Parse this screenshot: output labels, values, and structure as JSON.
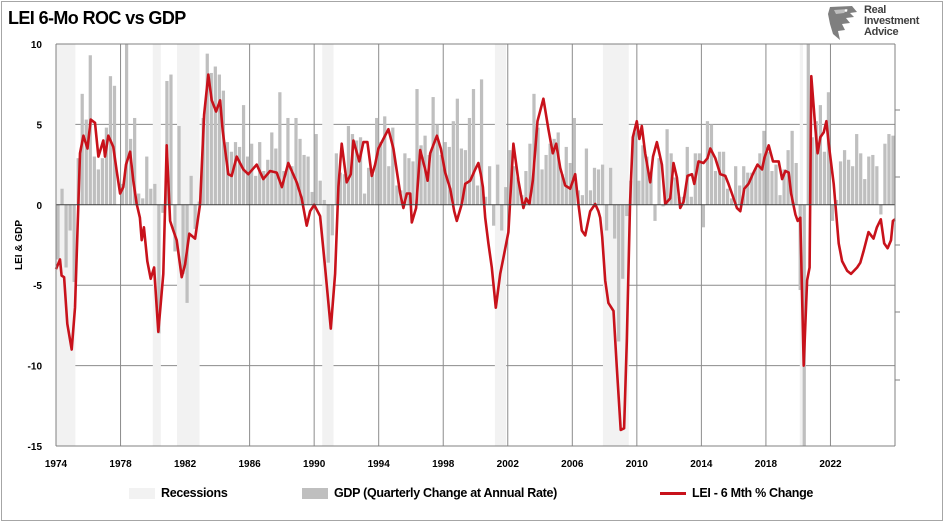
{
  "title": "LEI 6-Mo ROC vs GDP",
  "logo": {
    "line1": "Real",
    "line2": "Investment",
    "line3": "Advice"
  },
  "colors": {
    "recession": "#f2f2f2",
    "gdp": "#bfbfbf",
    "lei": "#c8121b",
    "grid": "#8c8c8c"
  },
  "chart_data": {
    "type": "bar+line",
    "title": "LEI 6-Mo ROC vs GDP",
    "ylabel": "LEI & GDP",
    "xlabel": "",
    "xlim": [
      1974,
      2026
    ],
    "ylim": [
      -15,
      10
    ],
    "yticks": [
      10,
      5,
      0,
      -5,
      -10,
      -15
    ],
    "xticks": [
      1974,
      1978,
      1982,
      1986,
      1990,
      1994,
      1998,
      2002,
      2006,
      2010,
      2014,
      2018,
      2022
    ],
    "grid": true,
    "legend_position": "bottom",
    "legend": [
      "Recessions",
      "GDP (Quarterly Change at Annual Rate)",
      "LEI - 6 Mth % Change"
    ],
    "recessions": [
      [
        1974.0,
        1975.2
      ],
      [
        1980.0,
        1980.5
      ],
      [
        1981.5,
        1982.9
      ],
      [
        1990.5,
        1991.2
      ],
      [
        2001.2,
        2001.9
      ],
      [
        2007.9,
        2009.5
      ],
      [
        2020.1,
        2020.3
      ]
    ],
    "gdp": {
      "name": "GDP (Quarterly Change at Annual Rate)",
      "start_year": 1974,
      "values": [
        -3.4,
        1.0,
        -3.9,
        -1.6,
        -4.8,
        2.9,
        6.9,
        5.3,
        9.3,
        3.0,
        2.2,
        2.9,
        4.8,
        8.0,
        7.4,
        0.0,
        1.3,
        16.4,
        4.1,
        5.4,
        0.7,
        0.4,
        3.0,
        1.0,
        1.3,
        -8.0,
        -0.5,
        7.7,
        8.1,
        -2.9,
        4.9,
        -4.3,
        -6.1,
        1.8,
        -1.5,
        0.2,
        5.4,
        9.4,
        8.2,
        8.6,
        8.1,
        7.1,
        3.9,
        3.3,
        3.9,
        3.6,
        6.2,
        3.0,
        3.8,
        1.8,
        3.9,
        2.1,
        2.8,
        4.5,
        3.5,
        7.0,
        2.1,
        5.4,
        2.4,
        5.4,
        4.1,
        3.1,
        3.0,
        0.8,
        4.4,
        1.5,
        0.3,
        -3.6,
        -1.9,
        3.2,
        2.0,
        1.9,
        4.9,
        4.4,
        4.0,
        4.2,
        0.7,
        2.3,
        1.9,
        5.4,
        3.9,
        5.5,
        2.4,
        4.8,
        1.2,
        0.9,
        3.2,
        2.9,
        2.7,
        7.2,
        3.7,
        4.3,
        3.1,
        6.7,
        5.0,
        3.1,
        3.9,
        3.6,
        5.2,
        6.6,
        3.5,
        3.4,
        5.4,
        7.2,
        1.2,
        7.8,
        0.5,
        2.4,
        -1.3,
        2.5,
        -1.6,
        1.1,
        3.4,
        2.4,
        1.7,
        0.6,
        2.1,
        3.8,
        6.9,
        4.8,
        2.2,
        3.1,
        3.8,
        4.1,
        4.5,
        1.9,
        3.6,
        2.6,
        5.4,
        0.9,
        0.6,
        3.5,
        0.9,
        2.3,
        2.2,
        2.5,
        -1.6,
        2.3,
        -2.1,
        -8.5,
        -4.6,
        -0.7,
        1.5,
        4.5,
        1.5,
        3.7,
        3.0,
        2.0,
        -1.0,
        2.9,
        -0.1,
        4.7,
        3.2,
        1.7,
        0.5,
        0.5,
        3.6,
        0.5,
        3.2,
        3.2,
        -1.4,
        5.2,
        5.0,
        2.1,
        3.3,
        3.3,
        1.0,
        0.4,
        2.4,
        1.2,
        2.4,
        2.0,
        2.0,
        2.3,
        3.2,
        4.6,
        3.3,
        2.1,
        2.5,
        0.6,
        2.2,
        3.4,
        4.6,
        2.6,
        -5.3,
        -28.0,
        34.8,
        4.2,
        5.2,
        6.2,
        3.3,
        7.0,
        -1.0,
        0.3,
        2.7,
        3.4,
        2.8,
        2.4,
        4.4,
        3.2,
        1.6,
        3.0,
        3.1,
        2.4,
        -0.6,
        3.8,
        4.4,
        4.3
      ]
    },
    "lei": {
      "name": "LEI - 6 Mth % Change",
      "points": [
        [
          1974.0,
          -4.0
        ],
        [
          1974.25,
          -3.4
        ],
        [
          1974.35,
          -4.4
        ],
        [
          1974.5,
          -4.5
        ],
        [
          1974.7,
          -7.4
        ],
        [
          1974.97,
          -9.0
        ],
        [
          1975.18,
          -6.4
        ],
        [
          1975.49,
          3.2
        ],
        [
          1975.7,
          4.3
        ],
        [
          1975.95,
          3.5
        ],
        [
          1976.15,
          5.3
        ],
        [
          1976.42,
          5.1
        ],
        [
          1976.63,
          3.0
        ],
        [
          1976.93,
          4.0
        ],
        [
          1977.04,
          3.0
        ],
        [
          1977.24,
          4.3
        ],
        [
          1977.55,
          3.6
        ],
        [
          1977.76,
          2.1
        ],
        [
          1977.97,
          0.7
        ],
        [
          1978.17,
          1.1
        ],
        [
          1978.34,
          2.5
        ],
        [
          1978.59,
          3.3
        ],
        [
          1978.79,
          1.5
        ],
        [
          1979.0,
          0.05
        ],
        [
          1979.2,
          -0.8
        ],
        [
          1979.31,
          -2.2
        ],
        [
          1979.45,
          -1.4
        ],
        [
          1979.66,
          -3.5
        ],
        [
          1979.87,
          -4.6
        ],
        [
          1980.08,
          -3.9
        ],
        [
          1980.34,
          -7.9
        ],
        [
          1980.65,
          -4.3
        ],
        [
          1980.86,
          3.7
        ],
        [
          1981.07,
          -1.0
        ],
        [
          1981.27,
          -1.6
        ],
        [
          1981.48,
          -2.2
        ],
        [
          1981.79,
          -4.5
        ],
        [
          1982.0,
          -3.7
        ],
        [
          1982.26,
          -1.8
        ],
        [
          1982.62,
          -2.1
        ],
        [
          1982.93,
          0.05
        ],
        [
          1983.18,
          5.6
        ],
        [
          1983.44,
          8.1
        ],
        [
          1983.65,
          6.5
        ],
        [
          1983.92,
          5.8
        ],
        [
          1984.17,
          6.5
        ],
        [
          1984.33,
          4.6
        ],
        [
          1984.68,
          1.9
        ],
        [
          1984.89,
          1.8
        ],
        [
          1985.2,
          3.0
        ],
        [
          1985.61,
          2.2
        ],
        [
          1985.92,
          1.9
        ],
        [
          1986.44,
          2.5
        ],
        [
          1986.85,
          1.6
        ],
        [
          1987.27,
          2.1
        ],
        [
          1987.68,
          2.0
        ],
        [
          1988.0,
          1.1
        ],
        [
          1988.4,
          2.6
        ],
        [
          1988.92,
          1.4
        ],
        [
          1989.23,
          0.4
        ],
        [
          1989.54,
          -1.3
        ],
        [
          1989.75,
          -0.4
        ],
        [
          1990.0,
          0.0
        ],
        [
          1990.37,
          -0.7
        ],
        [
          1990.68,
          -3.9
        ],
        [
          1991.03,
          -7.7
        ],
        [
          1991.3,
          -4.3
        ],
        [
          1991.5,
          1.1
        ],
        [
          1991.71,
          3.8
        ],
        [
          1992.02,
          1.4
        ],
        [
          1992.27,
          1.9
        ],
        [
          1992.43,
          4.0
        ],
        [
          1992.8,
          2.7
        ],
        [
          1993.05,
          3.9
        ],
        [
          1993.3,
          3.9
        ],
        [
          1993.57,
          1.8
        ],
        [
          1993.78,
          2.5
        ],
        [
          1993.98,
          3.5
        ],
        [
          1994.29,
          4.1
        ],
        [
          1994.6,
          4.7
        ],
        [
          1994.91,
          3.5
        ],
        [
          1995.33,
          0.7
        ],
        [
          1995.53,
          -0.2
        ],
        [
          1995.74,
          0.7
        ],
        [
          1995.95,
          0.7
        ],
        [
          1996.05,
          -1.1
        ],
        [
          1996.32,
          -0.2
        ],
        [
          1996.57,
          3.4
        ],
        [
          1996.88,
          2.2
        ],
        [
          1997.03,
          1.5
        ],
        [
          1997.19,
          3.2
        ],
        [
          1997.61,
          4.3
        ],
        [
          1997.85,
          3.5
        ],
        [
          1998.12,
          2.0
        ],
        [
          1998.43,
          1.0
        ],
        [
          1998.68,
          -0.4
        ],
        [
          1998.84,
          -1.0
        ],
        [
          1999.15,
          0.05
        ],
        [
          1999.36,
          1.3
        ],
        [
          1999.67,
          1.5
        ],
        [
          1999.98,
          2.2
        ],
        [
          2000.18,
          2.6
        ],
        [
          2000.33,
          1.9
        ],
        [
          2000.46,
          1.1
        ],
        [
          2000.6,
          -0.8
        ],
        [
          2000.8,
          -2.4
        ],
        [
          2001.01,
          -3.9
        ],
        [
          2001.26,
          -6.4
        ],
        [
          2001.53,
          -4.3
        ],
        [
          2001.73,
          -3.3
        ],
        [
          2002.04,
          -1.7
        ],
        [
          2002.35,
          3.8
        ],
        [
          2002.66,
          1.5
        ],
        [
          2002.97,
          -0.2
        ],
        [
          2003.14,
          0.4
        ],
        [
          2003.34,
          0.05
        ],
        [
          2003.55,
          1.5
        ],
        [
          2003.84,
          5.2
        ],
        [
          2004.21,
          6.6
        ],
        [
          2004.52,
          4.7
        ],
        [
          2004.79,
          3.2
        ],
        [
          2005.0,
          3.8
        ],
        [
          2005.25,
          2.3
        ],
        [
          2005.56,
          1.2
        ],
        [
          2005.87,
          1.0
        ],
        [
          2006.18,
          1.9
        ],
        [
          2006.38,
          0.05
        ],
        [
          2006.59,
          -1.6
        ],
        [
          2006.8,
          -1.9
        ],
        [
          2007.11,
          -0.4
        ],
        [
          2007.42,
          0.05
        ],
        [
          2007.62,
          -0.4
        ],
        [
          2007.73,
          -0.8
        ],
        [
          2007.85,
          -2.0
        ],
        [
          2008.04,
          -4.7
        ],
        [
          2008.24,
          -6.1
        ],
        [
          2008.55,
          -6.6
        ],
        [
          2008.76,
          -10.1
        ],
        [
          2009.0,
          -14.0
        ],
        [
          2009.21,
          -13.9
        ],
        [
          2009.38,
          -8.5
        ],
        [
          2009.58,
          0.2
        ],
        [
          2009.75,
          4.2
        ],
        [
          2010.0,
          5.2
        ],
        [
          2010.16,
          4.1
        ],
        [
          2010.31,
          4.9
        ],
        [
          2010.52,
          3.2
        ],
        [
          2010.83,
          1.4
        ],
        [
          2011.0,
          3.0
        ],
        [
          2011.24,
          3.9
        ],
        [
          2011.55,
          2.5
        ],
        [
          2011.76,
          0.05
        ],
        [
          2012.07,
          0.4
        ],
        [
          2012.27,
          2.6
        ],
        [
          2012.48,
          1.7
        ],
        [
          2012.69,
          -0.2
        ],
        [
          2012.9,
          0.2
        ],
        [
          2013.14,
          1.8
        ],
        [
          2013.41,
          1.9
        ],
        [
          2013.56,
          1.3
        ],
        [
          2013.82,
          2.7
        ],
        [
          2014.13,
          2.6
        ],
        [
          2014.38,
          2.9
        ],
        [
          2014.55,
          3.5
        ],
        [
          2014.86,
          2.9
        ],
        [
          2015.17,
          1.9
        ],
        [
          2015.48,
          1.8
        ],
        [
          2015.68,
          1.3
        ],
        [
          2015.89,
          0.7
        ],
        [
          2016.2,
          -0.2
        ],
        [
          2016.41,
          -0.4
        ],
        [
          2016.66,
          1.0
        ],
        [
          2016.92,
          1.3
        ],
        [
          2017.23,
          2.0
        ],
        [
          2017.48,
          2.5
        ],
        [
          2017.76,
          2.2
        ],
        [
          2017.9,
          2.9
        ],
        [
          2018.17,
          3.7
        ],
        [
          2018.44,
          2.7
        ],
        [
          2018.79,
          2.7
        ],
        [
          2019.0,
          1.6
        ],
        [
          2019.21,
          2.1
        ],
        [
          2019.41,
          2.0
        ],
        [
          2019.56,
          0.7
        ],
        [
          2019.83,
          -0.6
        ],
        [
          2019.97,
          -1.0
        ],
        [
          2020.13,
          -0.8
        ],
        [
          2020.34,
          -10.0
        ],
        [
          2020.55,
          -4.7
        ],
        [
          2020.71,
          -3.9
        ],
        [
          2020.81,
          8.0
        ],
        [
          2021.06,
          4.8
        ],
        [
          2021.2,
          3.2
        ],
        [
          2021.37,
          4.2
        ],
        [
          2021.58,
          4.5
        ],
        [
          2021.75,
          5.2
        ],
        [
          2021.89,
          3.8
        ],
        [
          2022.2,
          1.3
        ],
        [
          2022.51,
          -2.4
        ],
        [
          2022.72,
          -3.5
        ],
        [
          2023.03,
          -4.1
        ],
        [
          2023.27,
          -4.3
        ],
        [
          2023.65,
          -3.9
        ],
        [
          2023.85,
          -3.6
        ],
        [
          2024.05,
          -2.9
        ],
        [
          2024.36,
          -1.7
        ],
        [
          2024.67,
          -2.1
        ],
        [
          2024.88,
          -1.4
        ],
        [
          2025.12,
          -0.9
        ],
        [
          2025.33,
          -2.4
        ],
        [
          2025.54,
          -2.7
        ],
        [
          2025.75,
          -2.2
        ],
        [
          2025.87,
          -1.0
        ],
        [
          2026.0,
          -0.9
        ]
      ]
    }
  }
}
